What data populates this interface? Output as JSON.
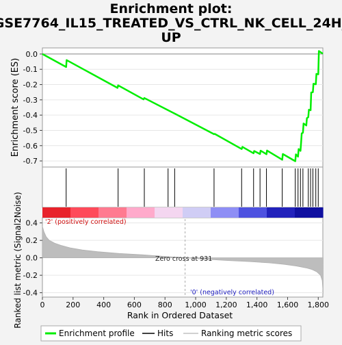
{
  "chart_data": {
    "type": "line",
    "title_lines": [
      "Enrichment plot:",
      "GSE7764_IL15_TREATED_VS_CTRL_NK_CELL_24H_",
      "UP"
    ],
    "es_panel": {
      "ylabel": "Enrichment score (ES)",
      "ylim": [
        -0.74,
        0.04
      ],
      "yticks": [
        0.0,
        -0.1,
        -0.2,
        -0.3,
        -0.4,
        -0.5,
        -0.6,
        -0.7
      ],
      "ytick_labels": [
        "0.0",
        "-0.1",
        "-0.2",
        "-0.3",
        "-0.4",
        "-0.5",
        "-0.6",
        "-0.7"
      ],
      "series": [
        {
          "name": "Enrichment profile",
          "color": "#00ee00",
          "points": [
            [
              0,
              0.0
            ],
            [
              155,
              -0.085
            ],
            [
              158,
              -0.04
            ],
            [
              490,
              -0.222
            ],
            [
              494,
              -0.205
            ],
            [
              660,
              -0.297
            ],
            [
              665,
              -0.288
            ],
            [
              820,
              -0.368
            ],
            [
              863,
              -0.39
            ],
            [
              1120,
              -0.525
            ],
            [
              1125,
              -0.523
            ],
            [
              1300,
              -0.622
            ],
            [
              1305,
              -0.608
            ],
            [
              1378,
              -0.65
            ],
            [
              1382,
              -0.635
            ],
            [
              1420,
              -0.655
            ],
            [
              1424,
              -0.633
            ],
            [
              1462,
              -0.656
            ],
            [
              1466,
              -0.632
            ],
            [
              1565,
              -0.692
            ],
            [
              1569,
              -0.655
            ],
            [
              1650,
              -0.702
            ],
            [
              1654,
              -0.657
            ],
            [
              1668,
              -0.672
            ],
            [
              1672,
              -0.622
            ],
            [
              1684,
              -0.634
            ],
            [
              1688,
              -0.58
            ],
            [
              1692,
              -0.52
            ],
            [
              1700,
              -0.515
            ],
            [
              1704,
              -0.455
            ],
            [
              1722,
              -0.468
            ],
            [
              1726,
              -0.42
            ],
            [
              1735,
              -0.413
            ],
            [
              1739,
              -0.365
            ],
            [
              1750,
              -0.368
            ],
            [
              1754,
              -0.252
            ],
            [
              1765,
              -0.25
            ],
            [
              1769,
              -0.195
            ],
            [
              1784,
              -0.198
            ],
            [
              1788,
              -0.13
            ],
            [
              1800,
              -0.133
            ],
            [
              1804,
              0.02
            ],
            [
              1830,
              0.002
            ]
          ]
        }
      ]
    },
    "hits": [
      155,
      494,
      665,
      820,
      863,
      1120,
      1300,
      1378,
      1420,
      1462,
      1565,
      1650,
      1668,
      1684,
      1700,
      1735,
      1750,
      1765,
      1784,
      1800
    ],
    "color_bar": {
      "colors_left_to_right": [
        "#e8222b",
        "#ff4a5a",
        "#ff7a90",
        "#ffaacb",
        "#f4d6f0",
        "#d0cdf5",
        "#8e8ef5",
        "#4e52e0",
        "#2222bb",
        "#1010a0"
      ]
    },
    "metric_panel": {
      "ylabel": "Ranked list metric (Signal2Noise)",
      "ylim": [
        -0.45,
        0.46
      ],
      "yticks": [
        0.4,
        0.2,
        0.0,
        -0.2,
        -0.4
      ],
      "ytick_labels": [
        "0.4",
        "0.2",
        "0.0",
        "-0.2",
        "-0.4"
      ],
      "zero_cross_label": "Zero cross at 931",
      "zero_cross": 931,
      "pos_label": "'2' (positively correlated)",
      "neg_label": "'0' (negatively correlated)",
      "metric_curve": [
        [
          0,
          0.36
        ],
        [
          10,
          0.3
        ],
        [
          25,
          0.24
        ],
        [
          45,
          0.2
        ],
        [
          80,
          0.168
        ],
        [
          120,
          0.143
        ],
        [
          180,
          0.115
        ],
        [
          260,
          0.09
        ],
        [
          360,
          0.07
        ],
        [
          500,
          0.05
        ],
        [
          650,
          0.035
        ],
        [
          800,
          0.016
        ],
        [
          931,
          0.0
        ],
        [
          1050,
          -0.015
        ],
        [
          1200,
          -0.03
        ],
        [
          1350,
          -0.043
        ],
        [
          1480,
          -0.058
        ],
        [
          1580,
          -0.075
        ],
        [
          1660,
          -0.095
        ],
        [
          1720,
          -0.115
        ],
        [
          1760,
          -0.135
        ],
        [
          1790,
          -0.16
        ],
        [
          1815,
          -0.2
        ],
        [
          1826,
          -0.26
        ],
        [
          1832,
          -0.41
        ]
      ]
    },
    "xaxis": {
      "xlabel": "Rank in Ordered Dataset",
      "xlim": [
        0,
        1830
      ],
      "xticks": [
        0,
        200,
        400,
        600,
        800,
        1000,
        1200,
        1400,
        1600,
        1800
      ],
      "xtick_labels": [
        "0",
        "200",
        "400",
        "600",
        "800",
        "1,000",
        "1,200",
        "1,400",
        "1,600",
        "1,800"
      ]
    },
    "legend": {
      "placement": "bottom",
      "entries": [
        {
          "label": "Enrichment profile",
          "color": "#00ee00"
        },
        {
          "label": "Hits",
          "color": "#000000"
        },
        {
          "label": "Ranking metric scores",
          "color": "#c0c0c0"
        }
      ]
    }
  }
}
